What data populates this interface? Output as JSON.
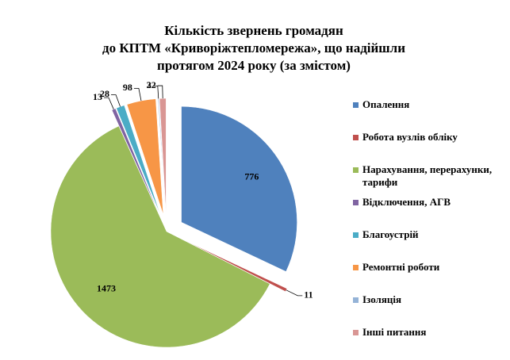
{
  "chart_data": {
    "type": "pie",
    "title": [
      "Кількість звернень громадян",
      "до КПТМ «Криворіжтепломережа», що надійшли",
      "протягом 2024 року (за змістом)"
    ],
    "categories": [
      "Опалення",
      "Робота вузлів обліку",
      "Нарахування, перерахунки, тарифи",
      "Відключення, АГВ",
      "Благоустрій",
      "Ремонтні роботи",
      "Ізоляція",
      "Інші питання"
    ],
    "values": [
      776,
      11,
      1473,
      13,
      28,
      98,
      3,
      22
    ],
    "colors": [
      "#4f81bd",
      "#c0504d",
      "#9bbb59",
      "#8064a2",
      "#4bacc6",
      "#f79646",
      "#95b3d7",
      "#d99694"
    ],
    "legend": "right"
  }
}
